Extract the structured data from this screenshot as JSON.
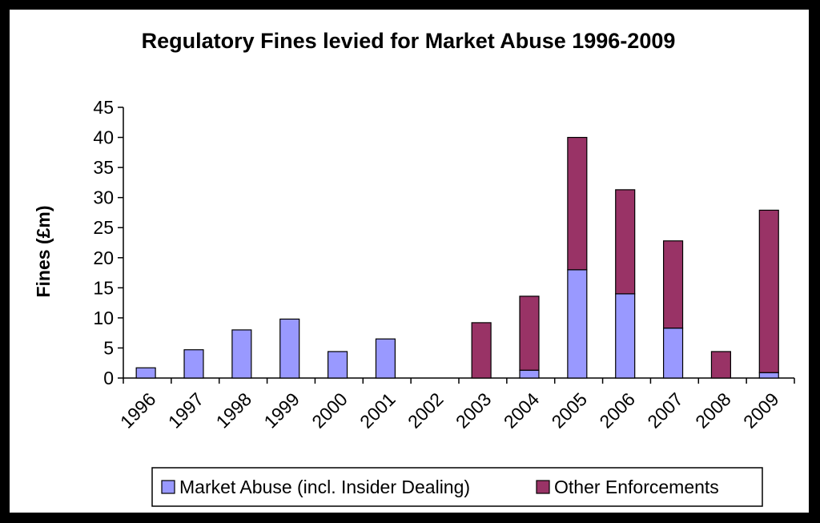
{
  "chart_data": {
    "type": "bar",
    "stacked": true,
    "title": "Regulatory Fines levied for Market Abuse 1996-2009",
    "xlabel": "",
    "ylabel": "Fines (£m)",
    "ylim": [
      0,
      45
    ],
    "yticks": [
      0,
      5,
      10,
      15,
      20,
      25,
      30,
      35,
      40,
      45
    ],
    "categories": [
      "1996",
      "1997",
      "1998",
      "1999",
      "2000",
      "2001",
      "2002",
      "2003",
      "2004",
      "2005",
      "2006",
      "2007",
      "2008",
      "2009"
    ],
    "series": [
      {
        "name": "Market Abuse (incl. Insider Dealing)",
        "color": "#9999ff",
        "values": [
          1.7,
          4.7,
          8.0,
          9.8,
          4.4,
          6.5,
          0,
          0,
          1.3,
          18.0,
          14.0,
          8.3,
          0,
          0.9
        ]
      },
      {
        "name": "Other Enforcements",
        "color": "#993366",
        "values": [
          0,
          0,
          0,
          0,
          0,
          0,
          0,
          9.2,
          12.3,
          22.0,
          17.3,
          14.5,
          4.4,
          27.0
        ]
      }
    ],
    "legend": "bottom",
    "grid": false
  }
}
